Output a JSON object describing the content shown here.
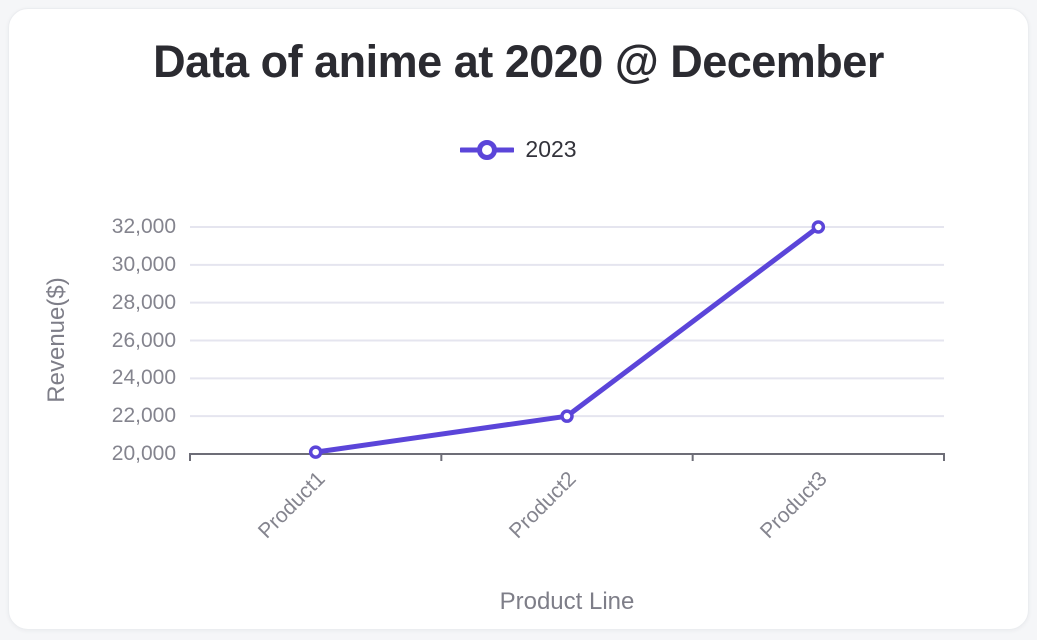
{
  "chart_data": {
    "type": "line",
    "title": "Data of anime at 2020 @ December",
    "xlabel": "Product Line",
    "ylabel": "Revenue($)",
    "categories": [
      "Product1",
      "Product2",
      "Product3"
    ],
    "series": [
      {
        "name": "2023",
        "values": [
          20100,
          22000,
          32000
        ]
      }
    ],
    "ylim": [
      20000,
      32000
    ],
    "ytick_values": [
      20000,
      22000,
      24000,
      26000,
      28000,
      30000,
      32000
    ],
    "ytick_labels": [
      "20,000",
      "22,000",
      "24,000",
      "26,000",
      "28,000",
      "30,000",
      "32,000"
    ],
    "grid": true,
    "legend_position": "top",
    "marker": "hollow-circle"
  },
  "colors": {
    "accent": "#5b45d9",
    "marker_fill": "#ffffff",
    "grid": "#e5e5ef",
    "axis": "#6d6d77",
    "tick_label": "#84848e",
    "axis_title": "#7e7e88",
    "title": "#2b2b31",
    "legend_text": "#33333b",
    "card_bg": "#ffffff",
    "card_border": "#ebedf0",
    "page_bg": "#f5f6f8"
  }
}
